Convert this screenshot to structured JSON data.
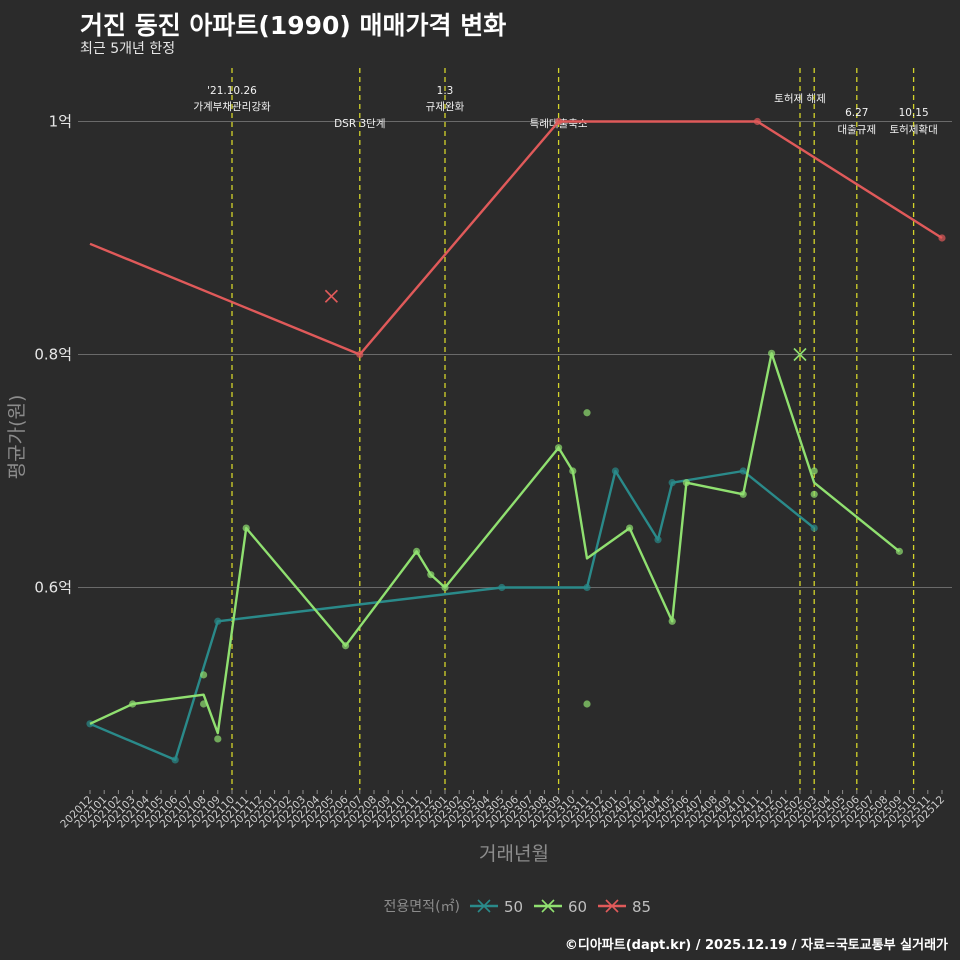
{
  "header": {
    "title": "거진 동진 아파트(1990) 매매가격 변화",
    "subtitle": "최근 5개년 한정"
  },
  "footer": {
    "caption": "©디아파트(dapt.kr) / 2025.12.19 / 자료=국토교통부 실거래가"
  },
  "chart_data": {
    "type": "line",
    "xlabel": "거래년월",
    "ylabel": "평균가(원)",
    "ylim": [
      0.425,
      1.06
    ],
    "yticks": [
      {
        "value": 0.6,
        "label": "0.6억"
      },
      {
        "value": 0.8,
        "label": "0.8억"
      },
      {
        "value": 1.0,
        "label": "1억"
      }
    ],
    "categories": [
      "202012",
      "202101",
      "202102",
      "202103",
      "202104",
      "202105",
      "202106",
      "202107",
      "202108",
      "202109",
      "202110",
      "202111",
      "202112",
      "202201",
      "202202",
      "202203",
      "202204",
      "202205",
      "202206",
      "202207",
      "202208",
      "202209",
      "202210",
      "202211",
      "202212",
      "202301",
      "202302",
      "202303",
      "202304",
      "202305",
      "202306",
      "202307",
      "202308",
      "202309",
      "202310",
      "202311",
      "202312",
      "202401",
      "202402",
      "202403",
      "202404",
      "202405",
      "202406",
      "202407",
      "202408",
      "202409",
      "202410",
      "202411",
      "202412",
      "202501",
      "202502",
      "202503",
      "202504",
      "202505",
      "202506",
      "202507",
      "202508",
      "202509",
      "202510",
      "202511",
      "202512"
    ],
    "series": [
      {
        "name": "50",
        "color": "#2a8a8a",
        "line": [
          [
            "202012",
            0.483
          ],
          [
            "202106",
            0.452
          ],
          [
            "202109",
            0.571
          ],
          [
            "202305",
            0.6
          ],
          [
            "202311",
            0.6
          ],
          [
            "202401",
            0.7
          ],
          [
            "202404",
            0.641
          ],
          [
            "202405",
            0.69
          ],
          [
            "202410",
            0.7
          ],
          [
            "202503",
            0.651
          ]
        ],
        "points": [
          [
            "202012",
            0.483
          ],
          [
            "202106",
            0.452
          ],
          [
            "202109",
            0.571
          ],
          [
            "202305",
            0.6
          ],
          [
            "202311",
            0.6
          ],
          [
            "202401",
            0.7
          ],
          [
            "202404",
            0.641
          ],
          [
            "202405",
            0.69
          ],
          [
            "202410",
            0.7
          ],
          [
            "202503",
            0.651
          ]
        ],
        "crosses": []
      },
      {
        "name": "60",
        "color": "#90e070",
        "line": [
          [
            "202012",
            0.483
          ],
          [
            "202103",
            0.5
          ],
          [
            "202108",
            0.508
          ],
          [
            "202109",
            0.475
          ],
          [
            "202111",
            0.651
          ],
          [
            "202206",
            0.55
          ],
          [
            "202211",
            0.631
          ],
          [
            "202212",
            0.611
          ],
          [
            "202301",
            0.6
          ],
          [
            "202309",
            0.72
          ],
          [
            "202310",
            0.7
          ],
          [
            "202311",
            0.625
          ],
          [
            "202402",
            0.651
          ],
          [
            "202405",
            0.571
          ],
          [
            "202406",
            0.69
          ],
          [
            "202410",
            0.68
          ],
          [
            "202412",
            0.801
          ],
          [
            "202503",
            0.69
          ],
          [
            "202509",
            0.631
          ]
        ],
        "points": [
          [
            "202103",
            0.5
          ],
          [
            "202108",
            0.525
          ],
          [
            "202108",
            0.5
          ],
          [
            "202109",
            0.47
          ],
          [
            "202111",
            0.651
          ],
          [
            "202206",
            0.55
          ],
          [
            "202211",
            0.631
          ],
          [
            "202212",
            0.611
          ],
          [
            "202301",
            0.6
          ],
          [
            "202309",
            0.72
          ],
          [
            "202310",
            0.7
          ],
          [
            "202311",
            0.75
          ],
          [
            "202311",
            0.5
          ],
          [
            "202402",
            0.651
          ],
          [
            "202405",
            0.571
          ],
          [
            "202406",
            0.69
          ],
          [
            "202410",
            0.68
          ],
          [
            "202412",
            0.801
          ],
          [
            "202503",
            0.7
          ],
          [
            "202503",
            0.68
          ],
          [
            "202509",
            0.631
          ]
        ],
        "crosses": [
          [
            "202502",
            0.8
          ]
        ]
      },
      {
        "name": "85",
        "color": "#e05a5a",
        "line": [
          [
            "202012",
            0.895
          ],
          [
            "202207",
            0.8
          ],
          [
            "202309",
            1.0
          ],
          [
            "202411",
            1.0
          ],
          [
            "202512",
            0.9
          ]
        ],
        "points": [
          [
            "202207",
            0.8
          ],
          [
            "202309",
            1.0
          ],
          [
            "202411",
            1.0
          ],
          [
            "202512",
            0.9
          ]
        ],
        "crosses": [
          [
            "202205",
            0.85
          ]
        ]
      }
    ],
    "events": [
      {
        "x": "202110",
        "label1": "'21.10.26",
        "label2": "가계부채관리강화",
        "row": 1
      },
      {
        "x": "202207",
        "label1": "DSR 3단계",
        "label2": "",
        "row": 3
      },
      {
        "x": "202301",
        "label1": "1.3",
        "label2": "규제완화",
        "row": 1
      },
      {
        "x": "202309",
        "label1": "특례대출축소",
        "label2": "",
        "row": 3
      },
      {
        "x": "202502",
        "label1": "토허제 해제",
        "label2": "",
        "row": 2
      },
      {
        "x": "202503",
        "label1": "",
        "label2": "",
        "row": 0
      },
      {
        "x": "202506",
        "label1": "6.27",
        "label2": "대출규제",
        "row": 4
      },
      {
        "x": "202510",
        "label1": "10.15",
        "label2": "토허제확대",
        "row": 4
      }
    ],
    "legend": {
      "title": "전용면적(㎡)",
      "position": "bottom",
      "entries": [
        "50",
        "60",
        "85"
      ]
    }
  }
}
